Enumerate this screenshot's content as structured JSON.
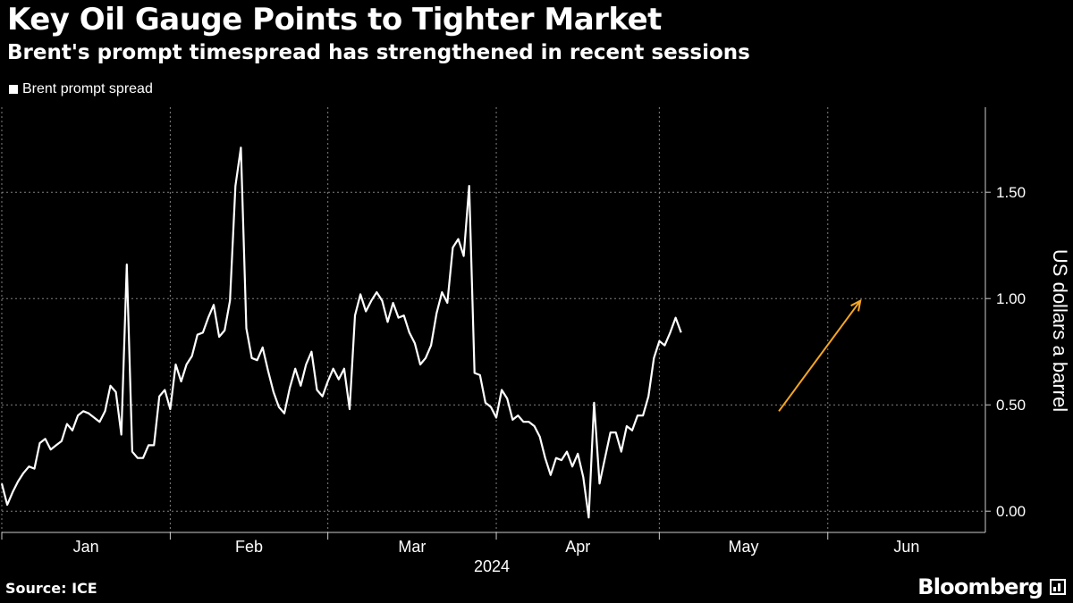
{
  "header": {
    "title": "Key Oil Gauge Points to Tighter Market",
    "subtitle": "Brent's prompt timespread has strengthened in recent sessions"
  },
  "footer": {
    "source": "Source: ICE",
    "brand": "Bloomberg",
    "brand_logo_icon": "bloomberg-terminal-icon"
  },
  "colors": {
    "background": "#000000",
    "series": "#ffffff",
    "arrow": "#f5a623",
    "grid": "#808080"
  },
  "chart_data": {
    "type": "line",
    "title": "Key Oil Gauge Points to Tighter Market",
    "subtitle": "Brent's prompt timespread has strengthened in recent sessions",
    "xlabel": "2024",
    "ylabel": "US dollars a barrel",
    "ylim": [
      -0.1,
      1.9
    ],
    "yticks": [
      0.0,
      0.5,
      1.0,
      1.5
    ],
    "ytick_labels": [
      "0.00",
      "0.50",
      "1.00",
      "1.50"
    ],
    "xlim": [
      "2024-01-01",
      "2024-06-30"
    ],
    "month_ticks": [
      "2024-01-01",
      "2024-02-01",
      "2024-03-01",
      "2024-04-01",
      "2024-05-01",
      "2024-06-01"
    ],
    "month_labels": [
      "Jan",
      "Feb",
      "Mar",
      "Apr",
      "May",
      "Jun"
    ],
    "grid": "horizontal-dotted",
    "legend": "top-left",
    "y_axis_side": "right",
    "annotation": {
      "type": "arrow",
      "from": [
        "2024-05-23",
        0.47
      ],
      "to": [
        "2024-06-07",
        0.99
      ],
      "color": "#f5a623"
    },
    "series": [
      {
        "name": "Brent prompt spread",
        "color": "#ffffff",
        "points": [
          [
            "2024-01-01",
            0.13
          ],
          [
            "2024-01-02",
            0.03
          ],
          [
            "2024-01-03",
            0.09
          ],
          [
            "2024-01-04",
            0.14
          ],
          [
            "2024-01-05",
            0.18
          ],
          [
            "2024-01-06",
            0.21
          ],
          [
            "2024-01-07",
            0.2
          ],
          [
            "2024-01-08",
            0.32
          ],
          [
            "2024-01-09",
            0.34
          ],
          [
            "2024-01-10",
            0.29
          ],
          [
            "2024-01-11",
            0.31
          ],
          [
            "2024-01-12",
            0.33
          ],
          [
            "2024-01-13",
            0.41
          ],
          [
            "2024-01-14",
            0.38
          ],
          [
            "2024-01-15",
            0.45
          ],
          [
            "2024-01-16",
            0.47
          ],
          [
            "2024-01-17",
            0.46
          ],
          [
            "2024-01-18",
            0.44
          ],
          [
            "2024-01-19",
            0.42
          ],
          [
            "2024-01-20",
            0.47
          ],
          [
            "2024-01-21",
            0.59
          ],
          [
            "2024-01-22",
            0.56
          ],
          [
            "2024-01-23",
            0.36
          ],
          [
            "2024-01-24",
            1.16
          ],
          [
            "2024-01-25",
            0.28
          ],
          [
            "2024-01-26",
            0.25
          ],
          [
            "2024-01-27",
            0.25
          ],
          [
            "2024-01-28",
            0.31
          ],
          [
            "2024-01-29",
            0.31
          ],
          [
            "2024-01-30",
            0.54
          ],
          [
            "2024-01-31",
            0.57
          ],
          [
            "2024-02-01",
            0.48
          ],
          [
            "2024-02-02",
            0.69
          ],
          [
            "2024-02-03",
            0.61
          ],
          [
            "2024-02-04",
            0.69
          ],
          [
            "2024-02-05",
            0.73
          ],
          [
            "2024-02-06",
            0.83
          ],
          [
            "2024-02-07",
            0.84
          ],
          [
            "2024-02-08",
            0.91
          ],
          [
            "2024-02-09",
            0.97
          ],
          [
            "2024-02-10",
            0.82
          ],
          [
            "2024-02-11",
            0.85
          ],
          [
            "2024-02-12",
            0.99
          ],
          [
            "2024-02-13",
            1.53
          ],
          [
            "2024-02-14",
            1.71
          ],
          [
            "2024-02-15",
            0.86
          ],
          [
            "2024-02-16",
            0.72
          ],
          [
            "2024-02-17",
            0.71
          ],
          [
            "2024-02-18",
            0.77
          ],
          [
            "2024-02-19",
            0.66
          ],
          [
            "2024-02-20",
            0.56
          ],
          [
            "2024-02-21",
            0.49
          ],
          [
            "2024-02-22",
            0.46
          ],
          [
            "2024-02-23",
            0.58
          ],
          [
            "2024-02-24",
            0.67
          ],
          [
            "2024-02-25",
            0.59
          ],
          [
            "2024-02-26",
            0.69
          ],
          [
            "2024-02-27",
            0.75
          ],
          [
            "2024-02-28",
            0.57
          ],
          [
            "2024-02-29",
            0.54
          ],
          [
            "2024-03-01",
            0.61
          ],
          [
            "2024-03-02",
            0.67
          ],
          [
            "2024-03-03",
            0.62
          ],
          [
            "2024-03-04",
            0.67
          ],
          [
            "2024-03-05",
            0.48
          ],
          [
            "2024-03-06",
            0.92
          ],
          [
            "2024-03-07",
            1.02
          ],
          [
            "2024-03-08",
            0.94
          ],
          [
            "2024-03-09",
            0.99
          ],
          [
            "2024-03-10",
            1.03
          ],
          [
            "2024-03-11",
            0.99
          ],
          [
            "2024-03-12",
            0.89
          ],
          [
            "2024-03-13",
            0.98
          ],
          [
            "2024-03-14",
            0.91
          ],
          [
            "2024-03-15",
            0.92
          ],
          [
            "2024-03-16",
            0.84
          ],
          [
            "2024-03-17",
            0.79
          ],
          [
            "2024-03-18",
            0.69
          ],
          [
            "2024-03-19",
            0.72
          ],
          [
            "2024-03-20",
            0.78
          ],
          [
            "2024-03-21",
            0.93
          ],
          [
            "2024-03-22",
            1.03
          ],
          [
            "2024-03-23",
            0.98
          ],
          [
            "2024-03-24",
            1.24
          ],
          [
            "2024-03-25",
            1.28
          ],
          [
            "2024-03-26",
            1.2
          ],
          [
            "2024-03-27",
            1.53
          ],
          [
            "2024-03-28",
            0.65
          ],
          [
            "2024-03-29",
            0.64
          ],
          [
            "2024-03-30",
            0.51
          ],
          [
            "2024-03-31",
            0.49
          ],
          [
            "2024-04-01",
            0.44
          ],
          [
            "2024-04-02",
            0.57
          ],
          [
            "2024-04-03",
            0.53
          ],
          [
            "2024-04-04",
            0.43
          ],
          [
            "2024-04-05",
            0.45
          ],
          [
            "2024-04-06",
            0.42
          ],
          [
            "2024-04-07",
            0.42
          ],
          [
            "2024-04-08",
            0.4
          ],
          [
            "2024-04-09",
            0.35
          ],
          [
            "2024-04-10",
            0.25
          ],
          [
            "2024-04-11",
            0.17
          ],
          [
            "2024-04-12",
            0.25
          ],
          [
            "2024-04-13",
            0.24
          ],
          [
            "2024-04-14",
            0.28
          ],
          [
            "2024-04-15",
            0.21
          ],
          [
            "2024-04-16",
            0.27
          ],
          [
            "2024-04-17",
            0.16
          ],
          [
            "2024-04-18",
            -0.03
          ],
          [
            "2024-04-19",
            0.51
          ],
          [
            "2024-04-20",
            0.13
          ],
          [
            "2024-04-21",
            0.25
          ],
          [
            "2024-04-22",
            0.37
          ],
          [
            "2024-04-23",
            0.37
          ],
          [
            "2024-04-24",
            0.28
          ],
          [
            "2024-04-25",
            0.4
          ],
          [
            "2024-04-26",
            0.38
          ],
          [
            "2024-04-27",
            0.45
          ],
          [
            "2024-04-28",
            0.45
          ],
          [
            "2024-04-29",
            0.54
          ],
          [
            "2024-04-30",
            0.72
          ],
          [
            "2024-05-01",
            0.8
          ],
          [
            "2024-05-02",
            0.78
          ],
          [
            "2024-05-03",
            0.84
          ],
          [
            "2024-05-04",
            0.91
          ],
          [
            "2024-05-05",
            0.84
          ]
        ]
      }
    ]
  }
}
